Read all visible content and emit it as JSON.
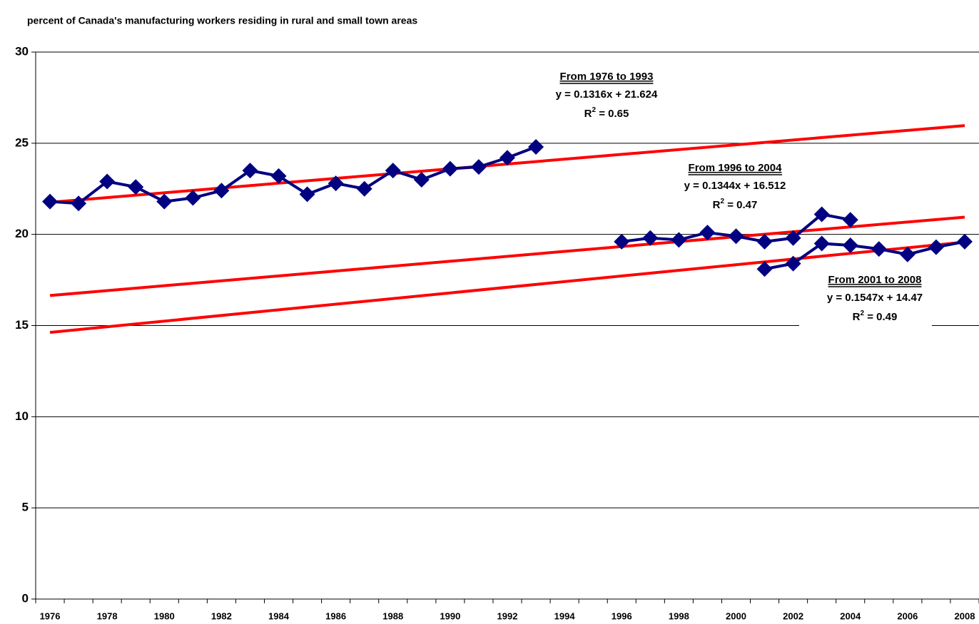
{
  "chart_data": {
    "type": "line",
    "title": "percent of Canada's manufacturing workers residing in rural and small town areas",
    "categories": [
      1976,
      null,
      1978,
      null,
      1980,
      null,
      1982,
      null,
      1984,
      null,
      1986,
      null,
      1988,
      null,
      1990,
      null,
      1992,
      null,
      1994,
      null,
      1996,
      null,
      1998,
      null,
      2000,
      null,
      2002,
      null,
      2004,
      null,
      2006,
      null,
      2008
    ],
    "series": [
      {
        "color": "#000080",
        "values": [
          21.8,
          21.7,
          22.9,
          22.6,
          21.8,
          22.0,
          22.4,
          23.5,
          23.2,
          22.2,
          22.8,
          22.5,
          23.5,
          23.0,
          23.6,
          23.7,
          24.2,
          24.8,
          null,
          null,
          null,
          null,
          null,
          null,
          null,
          null,
          null,
          null,
          null,
          null,
          null,
          null,
          null
        ]
      },
      {
        "color": "#000080",
        "values": [
          null,
          null,
          null,
          null,
          null,
          null,
          null,
          null,
          null,
          null,
          null,
          null,
          null,
          null,
          null,
          null,
          null,
          null,
          null,
          null,
          19.6,
          19.8,
          19.7,
          20.1,
          19.9,
          19.6,
          19.8,
          21.1,
          20.8,
          null,
          null,
          null,
          null
        ]
      },
      {
        "color": "#000080",
        "values": [
          null,
          null,
          null,
          null,
          null,
          null,
          null,
          null,
          null,
          null,
          null,
          null,
          null,
          null,
          null,
          null,
          null,
          null,
          null,
          null,
          null,
          null,
          null,
          null,
          null,
          18.1,
          18.4,
          19.5,
          19.4,
          19.2,
          18.9,
          19.3,
          19.6
        ]
      }
    ],
    "trendlines": [
      {
        "label": "From 1976 to 1993",
        "equation": "y = 0.1316x + 21.624",
        "r2_label": [
          "R",
          "2",
          " = 0.65"
        ],
        "slope": 0.1316,
        "intercept": 21.624,
        "color": "#ff0000"
      },
      {
        "label": "From 1996 to 2004",
        "equation": "y = 0.1344x + 16.512",
        "r2_label": [
          "R",
          "2",
          " = 0.47"
        ],
        "slope": 0.1344,
        "intercept": 16.512,
        "color": "#ff0000"
      },
      {
        "label": "From 2001 to 2008",
        "equation": "y = 0.1547x + 14.47",
        "r2_label": [
          "R",
          "2",
          " = 0.49"
        ],
        "slope": 0.1547,
        "intercept": 14.47,
        "color": "#ff0000"
      }
    ],
    "ylim": [
      0,
      30
    ],
    "yticks": [
      0,
      5,
      10,
      15,
      20,
      25,
      30
    ],
    "grid": true
  }
}
